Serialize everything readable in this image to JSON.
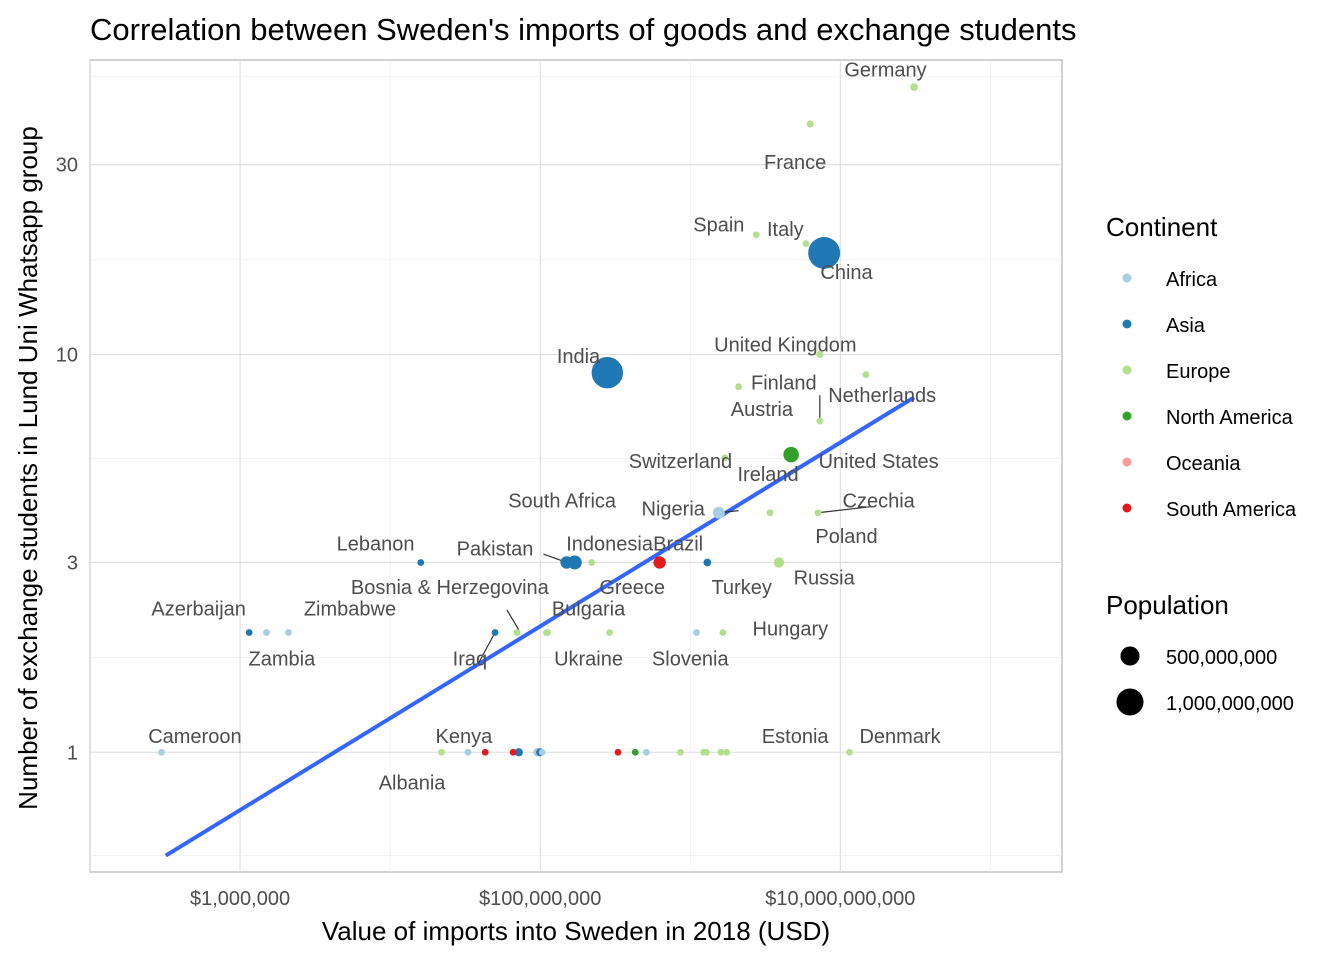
{
  "chart_data": {
    "type": "scatter",
    "title": "Correlation between Sweden's imports of goods and exchange students",
    "xlabel": "Value of imports into Sweden in 2018 (USD)",
    "ylabel": "Number of exchange students in Lund Uni Whatsapp group",
    "x_scale": "log10",
    "y_scale": "log10",
    "xlim": [
      100000,
      300000000000
    ],
    "ylim": [
      0.5,
      55
    ],
    "x_ticks": [
      {
        "value": 1000000,
        "label": "$1,000,000"
      },
      {
        "value": 100000000,
        "label": "$100,000,000"
      },
      {
        "value": 10000000000,
        "label": "$10,000,000,000"
      }
    ],
    "y_ticks": [
      {
        "value": 1,
        "label": "1"
      },
      {
        "value": 3,
        "label": "3"
      },
      {
        "value": 10,
        "label": "10"
      },
      {
        "value": 30,
        "label": "30"
      }
    ],
    "grid": true,
    "trend_line": {
      "color": "#3366ff",
      "from": [
        320000,
        0.55
      ],
      "to": [
        31000000000,
        7.8
      ]
    },
    "continent_colors": {
      "Africa": "#a6cee3",
      "Asia": "#1f78b4",
      "Europe": "#b2df8a",
      "North America": "#33a02c",
      "Oceania": "#fb9a99",
      "South America": "#e31a1c"
    },
    "points": [
      {
        "x": 31000000000,
        "y": 47,
        "continent": "Europe",
        "population": 83000000
      },
      {
        "x": 6300000000,
        "y": 38,
        "continent": "Europe",
        "population": 67000000
      },
      {
        "x": 2750000000,
        "y": 20,
        "continent": "Europe",
        "population": 47000000
      },
      {
        "x": 5900000000,
        "y": 19,
        "continent": "Europe",
        "population": 60000000
      },
      {
        "x": 7800000000,
        "y": 18,
        "continent": "Asia",
        "population": 1390000000
      },
      {
        "x": 7300000000,
        "y": 10,
        "continent": "Europe",
        "population": 66000000
      },
      {
        "x": 14800000000,
        "y": 8.9,
        "continent": "Europe",
        "population": 17000000
      },
      {
        "x": 2100000000,
        "y": 8.3,
        "continent": "Europe",
        "population": 5500000
      },
      {
        "x": 280000000,
        "y": 9,
        "continent": "Asia",
        "population": 1350000000
      },
      {
        "x": 7300000000,
        "y": 6.8,
        "continent": "Europe",
        "population": 5000000
      },
      {
        "x": 1700000000,
        "y": 5.5,
        "continent": "Europe",
        "population": 8800000
      },
      {
        "x": 4700000000,
        "y": 5.6,
        "continent": "North America",
        "population": 327000000
      },
      {
        "x": 1600000000,
        "y": 4.0,
        "continent": "Africa",
        "population": 58000000
      },
      {
        "x": 1550000000,
        "y": 4.0,
        "continent": "Africa",
        "population": 196000000
      },
      {
        "x": 3400000000,
        "y": 4.0,
        "continent": "Europe",
        "population": 10600000
      },
      {
        "x": 7100000000,
        "y": 4.0,
        "continent": "Europe",
        "population": 38000000
      },
      {
        "x": 16000000,
        "y": 3,
        "continent": "Asia",
        "population": 6800000
      },
      {
        "x": 150000000,
        "y": 3,
        "continent": "Asia",
        "population": 212000000
      },
      {
        "x": 170000000,
        "y": 3,
        "continent": "Asia",
        "population": 268000000
      },
      {
        "x": 220000000,
        "y": 3,
        "continent": "Europe",
        "population": 10700000
      },
      {
        "x": 625000000,
        "y": 3,
        "continent": "South America",
        "population": 209000000
      },
      {
        "x": 1300000000,
        "y": 3,
        "continent": "Asia",
        "population": 82000000
      },
      {
        "x": 3900000000,
        "y": 3,
        "continent": "Europe",
        "population": 144000000
      },
      {
        "x": 1100000000,
        "y": 2,
        "continent": "Africa",
        "population": 11400000
      },
      {
        "x": 50000000,
        "y": 2,
        "continent": "Asia",
        "population": 38000000
      },
      {
        "x": 70000000,
        "y": 2,
        "continent": "Europe",
        "population": 3300000
      },
      {
        "x": 1150000,
        "y": 2,
        "continent": "Asia",
        "population": 9900000
      },
      {
        "x": 1500000,
        "y": 2,
        "continent": "Africa",
        "population": 17000000
      },
      {
        "x": 2100000,
        "y": 2,
        "continent": "Africa",
        "population": 14000000
      },
      {
        "x": 110000000,
        "y": 2,
        "continent": "Europe",
        "population": 7000000
      },
      {
        "x": 112000000,
        "y": 2,
        "continent": "Europe",
        "population": 44000000
      },
      {
        "x": 290000000,
        "y": 2,
        "continent": "Europe",
        "population": 2100000
      },
      {
        "x": 1650000000,
        "y": 2,
        "continent": "Europe",
        "population": 9800000
      },
      {
        "x": 300000,
        "y": 1,
        "continent": "Africa",
        "population": 25000000
      },
      {
        "x": 22000000,
        "y": 1,
        "continent": "Europe",
        "population": 2900000
      },
      {
        "x": 33000000,
        "y": 1,
        "continent": "Africa",
        "population": 51000000
      },
      {
        "x": 43000000,
        "y": 1,
        "continent": "South America",
        "population": 50000000
      },
      {
        "x": 66000000,
        "y": 1,
        "continent": "South America",
        "population": 44000000
      },
      {
        "x": 72000000,
        "y": 1,
        "continent": "Asia",
        "population": 95000000
      },
      {
        "x": 96000000,
        "y": 1,
        "continent": "Africa",
        "population": 99000000
      },
      {
        "x": 100000000,
        "y": 1,
        "continent": "Asia",
        "population": 90000000
      },
      {
        "x": 103000000,
        "y": 1,
        "continent": "Africa",
        "population": 20000000
      },
      {
        "x": 330000000,
        "y": 1,
        "continent": "South America",
        "population": 32000000
      },
      {
        "x": 430000000,
        "y": 1,
        "continent": "North America",
        "population": 37000000
      },
      {
        "x": 510000000,
        "y": 1,
        "continent": "Africa",
        "population": 1300000
      },
      {
        "x": 860000000,
        "y": 1,
        "continent": "Europe",
        "population": 4900000
      },
      {
        "x": 1230000000,
        "y": 1,
        "continent": "Europe",
        "population": 2000000
      },
      {
        "x": 1280000000,
        "y": 1,
        "continent": "Europe",
        "population": 4100000
      },
      {
        "x": 1600000000,
        "y": 1,
        "continent": "Europe",
        "population": 1900000
      },
      {
        "x": 1750000000,
        "y": 1,
        "continent": "Europe",
        "population": 1300000
      },
      {
        "x": 11500000000,
        "y": 1,
        "continent": "Europe",
        "population": 5800000
      }
    ],
    "labels": [
      {
        "text": "Germany",
        "x": 20000000000,
        "y": 52,
        "anchor": "middle"
      },
      {
        "text": "France",
        "x": 5000000000,
        "y": 30.5,
        "anchor": "middle"
      },
      {
        "text": "Spain",
        "x": 1550000000,
        "y": 21.2,
        "anchor": "middle"
      },
      {
        "text": "Italy",
        "x": 4300000000,
        "y": 20.7,
        "anchor": "middle"
      },
      {
        "text": "China",
        "x": 11000000000,
        "y": 16.1,
        "anchor": "middle"
      },
      {
        "text": "United Kingdom",
        "x": 4300000000,
        "y": 10.6,
        "anchor": "middle"
      },
      {
        "text": "India",
        "x": 180000000,
        "y": 9.9,
        "anchor": "middle"
      },
      {
        "text": "Finland",
        "x": 4200000000,
        "y": 8.5,
        "anchor": "middle"
      },
      {
        "text": "Netherlands",
        "x": 19000000000,
        "y": 7.9,
        "anchor": "middle"
      },
      {
        "text": "Austria",
        "x": 3000000000,
        "y": 7.3,
        "anchor": "middle"
      },
      {
        "text": "Switzerland",
        "x": 860000000,
        "y": 5.4,
        "anchor": "middle"
      },
      {
        "text": "United States",
        "x": 18000000000,
        "y": 5.4,
        "anchor": "middle"
      },
      {
        "text": "Ireland",
        "x": 3300000000,
        "y": 5.0,
        "anchor": "middle"
      },
      {
        "text": "South Africa",
        "x": 140000000,
        "y": 4.3,
        "anchor": "middle"
      },
      {
        "text": "Czechia",
        "x": 18000000000,
        "y": 4.3,
        "anchor": "middle"
      },
      {
        "text": "Nigeria",
        "x": 770000000,
        "y": 4.1,
        "anchor": "middle"
      },
      {
        "text": "Poland",
        "x": 11000000000,
        "y": 3.5,
        "anchor": "middle"
      },
      {
        "text": "Lebanon",
        "x": 8000000,
        "y": 3.35,
        "anchor": "middle"
      },
      {
        "text": "Indonesia",
        "x": 290000000,
        "y": 3.35,
        "anchor": "middle"
      },
      {
        "text": "Pakistan",
        "x": 50000000,
        "y": 3.25,
        "anchor": "middle"
      },
      {
        "text": "Brazil",
        "x": 830000000,
        "y": 3.35,
        "anchor": "middle"
      },
      {
        "text": "Russia",
        "x": 7800000000,
        "y": 2.75,
        "anchor": "middle"
      },
      {
        "text": "Bosnia & Herzegovina",
        "x": 25000000,
        "y": 2.6,
        "anchor": "middle"
      },
      {
        "text": "Greece",
        "x": 410000000,
        "y": 2.6,
        "anchor": "middle"
      },
      {
        "text": "Turkey",
        "x": 2200000000,
        "y": 2.6,
        "anchor": "middle"
      },
      {
        "text": "Azerbaijan",
        "x": 530000,
        "y": 2.3,
        "anchor": "middle"
      },
      {
        "text": "Zimbabwe",
        "x": 5400000,
        "y": 2.3,
        "anchor": "middle"
      },
      {
        "text": "Bulgaria",
        "x": 210000000,
        "y": 2.3,
        "anchor": "middle"
      },
      {
        "text": "Hungary",
        "x": 2600000000,
        "y": 2.05,
        "anchor": "start"
      },
      {
        "text": "Zambia",
        "x": 1900000,
        "y": 1.72,
        "anchor": "middle"
      },
      {
        "text": "Iraq",
        "x": 34000000,
        "y": 1.72,
        "anchor": "middle"
      },
      {
        "text": "Ukraine",
        "x": 210000000,
        "y": 1.72,
        "anchor": "middle"
      },
      {
        "text": "Slovenia",
        "x": 1000000000,
        "y": 1.72,
        "anchor": "middle"
      },
      {
        "text": "Cameroon",
        "x": 500000,
        "y": 1.1,
        "anchor": "middle"
      },
      {
        "text": "Kenya",
        "x": 31000000,
        "y": 1.1,
        "anchor": "middle"
      },
      {
        "text": "Estonia",
        "x": 5000000000,
        "y": 1.1,
        "anchor": "middle"
      },
      {
        "text": "Denmark",
        "x": 25000000000,
        "y": 1.1,
        "anchor": "middle"
      },
      {
        "text": "Albania",
        "x": 14000000,
        "y": 0.84,
        "anchor": "middle"
      }
    ],
    "leader_lines": [
      {
        "from": [
          2100000000,
          4.05
        ],
        "to": [
          1550000000,
          4.0
        ]
      },
      {
        "from": [
          7300000000,
          7.9
        ],
        "to": [
          7300000000,
          6.9
        ]
      },
      {
        "from": [
          16500000000,
          4.15
        ],
        "to": [
          7100000000,
          4.0
        ]
      },
      {
        "from": [
          105000000,
          3.15
        ],
        "to": [
          150000000,
          3.0
        ]
      },
      {
        "from": [
          60000000,
          2.28
        ],
        "to": [
          72000000,
          2.03
        ]
      },
      {
        "from": [
          39000000,
          1.68
        ],
        "to": [
          50000000,
          2.0
        ]
      }
    ],
    "legend": {
      "position": "right",
      "continent_title": "Continent",
      "continents": [
        "Africa",
        "Asia",
        "Europe",
        "North America",
        "Oceania",
        "South America"
      ],
      "population_title": "Population",
      "population_entries": [
        {
          "value": 500000000,
          "label": "500,000,000"
        },
        {
          "value": 1000000000,
          "label": "1,000,000,000"
        }
      ]
    }
  }
}
